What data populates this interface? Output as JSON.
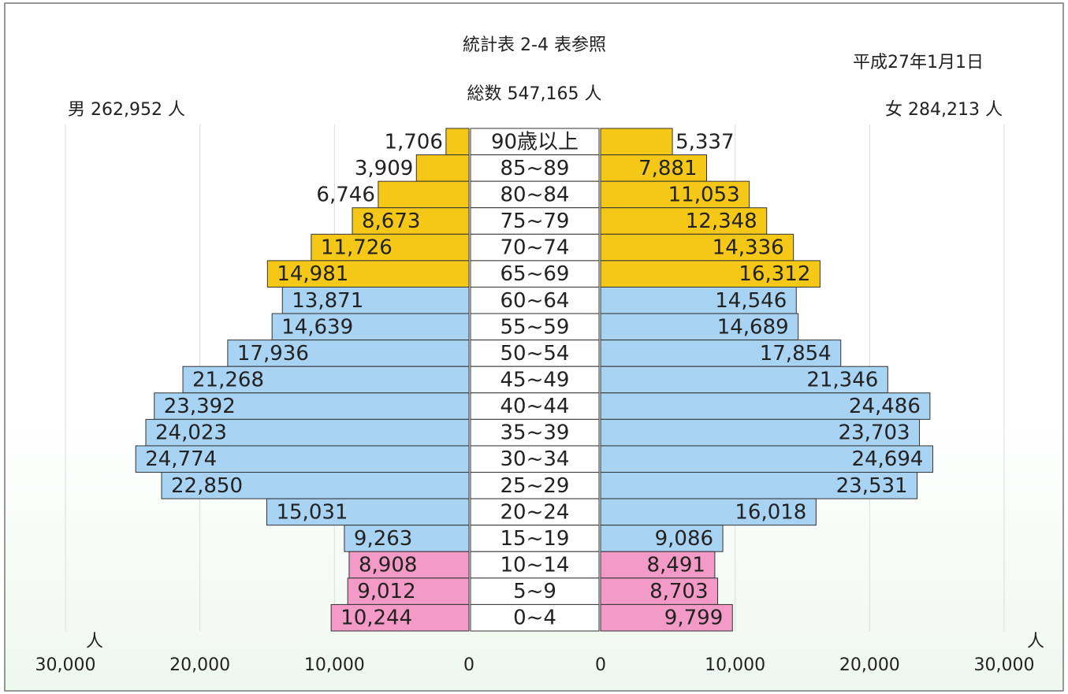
{
  "chart_data": {
    "type": "pyramid",
    "title": "統計表 2-4 表参照",
    "subtitle": "総数 547,165 人",
    "date": "平成27年1月1日",
    "left_label": "男 262,952 人",
    "right_label": "女 284,213 人",
    "axis_unit": "人",
    "categories": [
      "90歳以上",
      "85~89",
      "80~84",
      "75~79",
      "70~74",
      "65~69",
      "60~64",
      "55~59",
      "50~54",
      "45~49",
      "40~44",
      "35~39",
      "30~34",
      "25~29",
      "20~24",
      "15~19",
      "10~14",
      "5~9",
      "0~4"
    ],
    "bar_colors": [
      "#f5c817",
      "#f5c817",
      "#f5c817",
      "#f5c817",
      "#f5c817",
      "#f5c817",
      "#a9d3f2",
      "#a9d3f2",
      "#a9d3f2",
      "#a9d3f2",
      "#a9d3f2",
      "#a9d3f2",
      "#a9d3f2",
      "#a9d3f2",
      "#a9d3f2",
      "#a9d3f2",
      "#f39ac6",
      "#f39ac6",
      "#f39ac6"
    ],
    "series": [
      {
        "name": "男",
        "values": [
          1706,
          3909,
          6746,
          8673,
          11726,
          14981,
          13871,
          14639,
          17936,
          21268,
          23392,
          24023,
          24774,
          22850,
          15031,
          9263,
          8908,
          9012,
          10244
        ],
        "value_labels": [
          "1,706",
          "3,909",
          "6,746",
          "8,673",
          "11,726",
          "14,981",
          "13,871",
          "14,639",
          "17,936",
          "21,268",
          "23,392",
          "24,023",
          "24,774",
          "22,850",
          "15,031",
          "9,263",
          "8,908",
          "9,012",
          "10,244"
        ]
      },
      {
        "name": "女",
        "values": [
          5337,
          7881,
          11053,
          12348,
          14336,
          16312,
          14546,
          14689,
          17854,
          21346,
          24486,
          23703,
          24694,
          23531,
          16018,
          9086,
          8491,
          8703,
          9799
        ],
        "value_labels": [
          "5,337",
          "7,881",
          "11,053",
          "12,348",
          "14,336",
          "16,312",
          "14,546",
          "14,689",
          "17,854",
          "21,346",
          "24,486",
          "23,703",
          "24,694",
          "23,531",
          "16,018",
          "9,086",
          "8,491",
          "8,703",
          "9,799"
        ]
      }
    ],
    "xlim": [
      0,
      30000
    ],
    "xticks": [
      0,
      {
        "value": 10000,
        "label": "10,000"
      },
      {
        "value": 20000,
        "label": "20,000"
      },
      {
        "value": 30000,
        "label": "30,000"
      }
    ],
    "grid": true
  }
}
